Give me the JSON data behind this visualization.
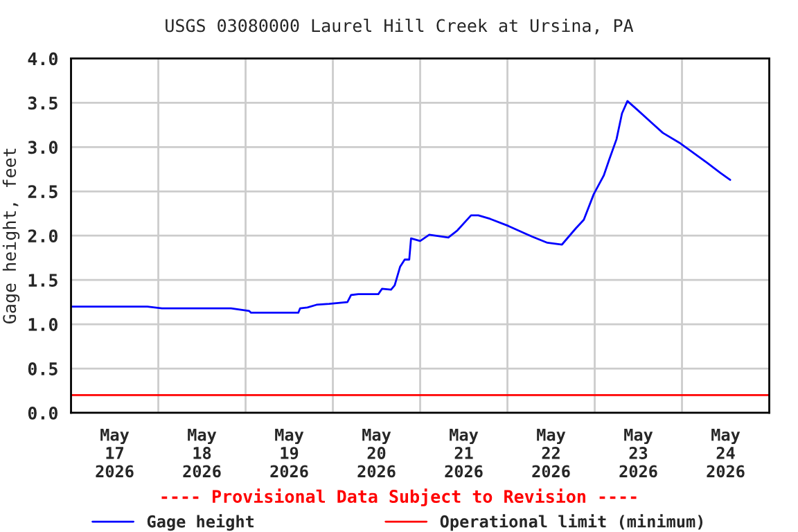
{
  "chart_data": {
    "type": "line",
    "title": "USGS 03080000 Laurel Hill Creek at Ursina, PA",
    "ylabel": "Gage height, feet",
    "x": [
      "2026-05-17T00:00",
      "2026-05-17T21:00",
      "2026-05-18T01:00",
      "2026-05-18T20:00",
      "2026-05-19T01:00",
      "2026-05-19T01:30",
      "2026-05-19T14:30",
      "2026-05-19T15:00",
      "2026-05-19T17:00",
      "2026-05-19T19:30",
      "2026-05-19T23:00",
      "2026-05-20T04:00",
      "2026-05-20T05:00",
      "2026-05-20T07:00",
      "2026-05-20T12:30",
      "2026-05-20T13:30",
      "2026-05-20T16:00",
      "2026-05-20T17:00",
      "2026-05-20T18:30",
      "2026-05-20T19:45",
      "2026-05-20T21:00",
      "2026-05-20T21:30",
      "2026-05-21T00:00",
      "2026-05-21T02:30",
      "2026-05-21T07:45",
      "2026-05-21T10:15",
      "2026-05-21T14:00",
      "2026-05-21T16:00",
      "2026-05-21T19:15",
      "2026-05-22T00:15",
      "2026-05-22T06:45",
      "2026-05-22T11:00",
      "2026-05-22T15:00",
      "2026-05-22T18:45",
      "2026-05-22T21:00",
      "2026-05-22T23:45",
      "2026-05-23T02:30",
      "2026-05-23T04:00",
      "2026-05-23T06:00",
      "2026-05-23T07:30",
      "2026-05-23T09:00",
      "2026-05-23T11:45",
      "2026-05-23T15:30",
      "2026-05-23T18:45",
      "2026-05-23T23:15",
      "2026-05-24T03:00",
      "2026-05-24T07:00",
      "2026-05-24T10:30",
      "2026-05-24T13:15"
    ],
    "series": [
      {
        "name": "Gage height",
        "color": "#0000ff",
        "values": [
          1.2,
          1.2,
          1.18,
          1.18,
          1.15,
          1.13,
          1.13,
          1.18,
          1.19,
          1.22,
          1.23,
          1.25,
          1.33,
          1.34,
          1.34,
          1.4,
          1.39,
          1.44,
          1.65,
          1.73,
          1.73,
          1.97,
          1.94,
          2.01,
          1.98,
          2.06,
          2.23,
          2.23,
          2.19,
          2.11,
          1.99,
          1.92,
          1.9,
          2.08,
          2.18,
          2.47,
          2.68,
          2.86,
          3.09,
          3.38,
          3.52,
          3.42,
          3.28,
          3.16,
          3.05,
          2.94,
          2.82,
          2.71,
          2.63
        ]
      }
    ],
    "ref_lines": [
      {
        "axis": "y",
        "value": 0.2,
        "label": "Operational limit (minimum)",
        "color": "#ff0000"
      }
    ],
    "annotations": [
      "---- Provisional Data Subject to Revision ----"
    ],
    "xlim": [
      "2026-05-17T00:00",
      "2026-05-25T00:00"
    ],
    "xticks": [
      {
        "value": "2026-05-17T12:00",
        "label": "May\n17\n2026"
      },
      {
        "value": "2026-05-18T00:00",
        "label": null
      },
      {
        "value": "2026-05-18T12:00",
        "label": "May\n18\n2026"
      },
      {
        "value": "2026-05-19T00:00",
        "label": null
      },
      {
        "value": "2026-05-19T12:00",
        "label": "May\n19\n2026"
      },
      {
        "value": "2026-05-20T00:00",
        "label": null
      },
      {
        "value": "2026-05-20T12:00",
        "label": "May\n20\n2026"
      },
      {
        "value": "2026-05-21T00:00",
        "label": null
      },
      {
        "value": "2026-05-21T12:00",
        "label": "May\n21\n2026"
      },
      {
        "value": "2026-05-22T00:00",
        "label": null
      },
      {
        "value": "2026-05-22T12:00",
        "label": "May\n22\n2026"
      },
      {
        "value": "2026-05-23T00:00",
        "label": null
      },
      {
        "value": "2026-05-23T12:00",
        "label": "May\n23\n2026"
      },
      {
        "value": "2026-05-24T00:00",
        "label": null
      },
      {
        "value": "2026-05-24T12:00",
        "label": "May\n24\n2026"
      }
    ],
    "ylim": [
      0,
      4
    ],
    "yticks": [
      {
        "value": 0,
        "label": "0.0"
      },
      0.5,
      {
        "value": 1,
        "label": "1.0"
      },
      1.5,
      {
        "value": 2,
        "label": "2.0"
      },
      2.5,
      {
        "value": 3,
        "label": "3.0"
      },
      3.5,
      {
        "value": 4,
        "label": "4.0"
      }
    ],
    "grid": true,
    "legend": "bottom",
    "line_style": "solid",
    "marker": "none"
  }
}
